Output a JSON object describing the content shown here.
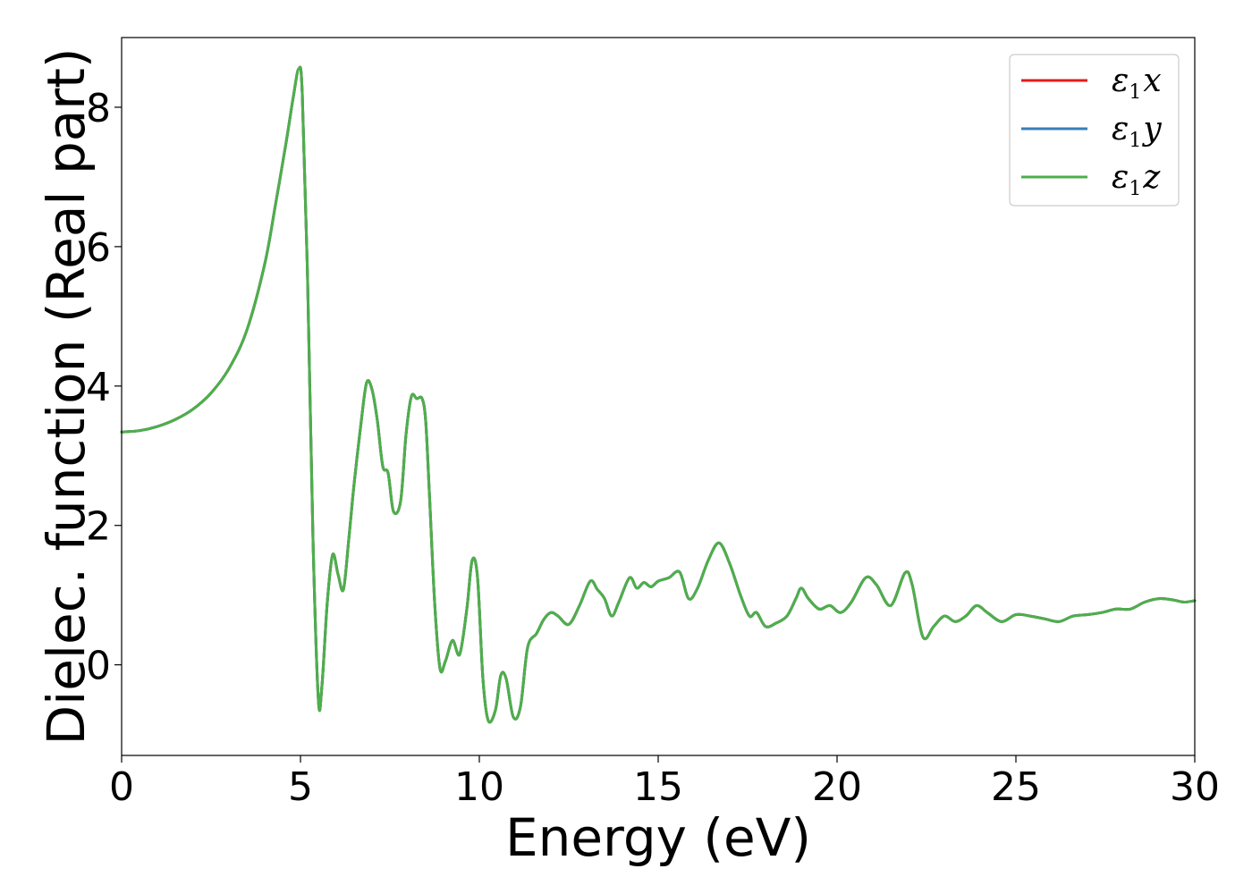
{
  "chart_data": {
    "type": "line",
    "xlabel": "Energy (eV)",
    "ylabel": "Dielec. function (Real part)",
    "xlim": [
      0,
      30
    ],
    "ylim": [
      -1.3,
      9.0
    ],
    "xticks": [
      0,
      5,
      10,
      15,
      20,
      25,
      30
    ],
    "yticks": [
      0,
      2,
      4,
      6,
      8
    ],
    "grid": false,
    "legend_position": "top-right",
    "series": [
      {
        "name": "ε1x",
        "legend_base": "ε",
        "legend_sub": "1",
        "legend_var": "x",
        "color": "#e41a1c",
        "x": [
          0,
          0.5,
          1,
          1.5,
          2,
          2.5,
          3,
          3.5,
          4,
          4.3,
          4.6,
          4.8,
          4.95,
          5.05,
          5.2,
          5.35,
          5.5,
          5.6,
          5.75,
          5.9,
          6.05,
          6.2,
          6.35,
          6.5,
          6.7,
          6.85,
          7.0,
          7.15,
          7.3,
          7.45,
          7.6,
          7.8,
          7.95,
          8.1,
          8.25,
          8.4,
          8.5,
          8.6,
          8.75,
          8.9,
          9.05,
          9.25,
          9.45,
          9.65,
          9.8,
          9.95,
          10.1,
          10.25,
          10.45,
          10.6,
          10.75,
          10.95,
          11.15,
          11.35,
          11.6,
          11.8,
          12.0,
          12.2,
          12.5,
          12.8,
          13.1,
          13.3,
          13.5,
          13.7,
          13.9,
          14.2,
          14.4,
          14.6,
          14.8,
          15.0,
          15.3,
          15.6,
          15.85,
          16.1,
          16.4,
          16.7,
          17.0,
          17.3,
          17.55,
          17.75,
          18.0,
          18.3,
          18.6,
          18.85,
          19.0,
          19.2,
          19.5,
          19.8,
          20.1,
          20.4,
          20.8,
          21.1,
          21.5,
          21.9,
          22.1,
          22.4,
          22.7,
          23.0,
          23.3,
          23.6,
          23.9,
          24.2,
          24.6,
          25.0,
          25.4,
          25.8,
          26.2,
          26.6,
          27.0,
          27.4,
          27.8,
          28.2,
          28.6,
          29.0,
          29.4,
          29.7,
          30.0
        ],
        "y": [
          3.34,
          3.36,
          3.42,
          3.52,
          3.67,
          3.9,
          4.25,
          4.8,
          5.75,
          6.6,
          7.5,
          8.15,
          8.55,
          8.2,
          5.5,
          1.8,
          -0.5,
          -0.3,
          0.9,
          1.58,
          1.3,
          1.08,
          1.8,
          2.6,
          3.5,
          4.05,
          3.95,
          3.5,
          2.85,
          2.75,
          2.2,
          2.35,
          3.3,
          3.85,
          3.82,
          3.82,
          3.5,
          2.5,
          0.9,
          -0.05,
          0.05,
          0.35,
          0.15,
          0.8,
          1.5,
          1.25,
          -0.2,
          -0.8,
          -0.65,
          -0.15,
          -0.2,
          -0.75,
          -0.6,
          0.25,
          0.45,
          0.65,
          0.75,
          0.7,
          0.58,
          0.85,
          1.2,
          1.08,
          0.95,
          0.7,
          0.9,
          1.25,
          1.1,
          1.18,
          1.12,
          1.2,
          1.25,
          1.33,
          0.95,
          1.1,
          1.5,
          1.75,
          1.45,
          1.0,
          0.7,
          0.75,
          0.55,
          0.6,
          0.7,
          0.95,
          1.1,
          0.95,
          0.8,
          0.85,
          0.75,
          0.9,
          1.25,
          1.15,
          0.85,
          1.32,
          1.15,
          0.4,
          0.55,
          0.7,
          0.62,
          0.7,
          0.85,
          0.75,
          0.62,
          0.72,
          0.7,
          0.66,
          0.62,
          0.7,
          0.72,
          0.75,
          0.8,
          0.8,
          0.9,
          0.95,
          0.93,
          0.9,
          0.92
        ]
      },
      {
        "name": "ε1y",
        "legend_base": "ε",
        "legend_sub": "1",
        "legend_var": "y",
        "color": "#377eb8",
        "same_as": 0
      },
      {
        "name": "ε1z",
        "legend_base": "ε",
        "legend_sub": "1",
        "legend_var": "z",
        "color": "#4daf4a",
        "same_as": 0
      }
    ]
  }
}
